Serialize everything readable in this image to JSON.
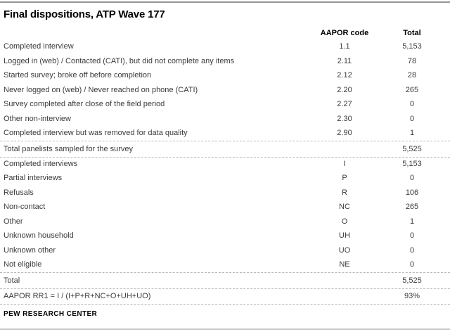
{
  "title": "Final dispositions, ATP Wave 177",
  "columns": {
    "code": "AAPOR code",
    "total": "Total"
  },
  "rows": [
    {
      "label": "Completed interview",
      "code": "1.1",
      "total": "5,153",
      "type": "normal"
    },
    {
      "label": "Logged in (web) / Contacted (CATI), but did not complete any items",
      "code": "2.11",
      "total": "78",
      "type": "normal"
    },
    {
      "label": "Started survey; broke off before completion",
      "code": "2.12",
      "total": "28",
      "type": "normal"
    },
    {
      "label": "Never logged on (web) / Never reached on phone (CATI)",
      "code": "2.20",
      "total": "265",
      "type": "normal"
    },
    {
      "label": "Survey completed after close of the field period",
      "code": "2.27",
      "total": "0",
      "type": "normal"
    },
    {
      "label": "Other non-interview",
      "code": "2.30",
      "total": "0",
      "type": "normal"
    },
    {
      "label": "Completed interview but was removed for data quality",
      "code": "2.90",
      "total": "1",
      "type": "normal"
    },
    {
      "label": "Total panelists sampled for the survey",
      "code": "",
      "total": "5,525",
      "type": "summary"
    },
    {
      "label": "Completed interviews",
      "code": "I",
      "total": "5,153",
      "type": "normal"
    },
    {
      "label": "Partial interviews",
      "code": "P",
      "total": "0",
      "type": "normal"
    },
    {
      "label": "Refusals",
      "code": "R",
      "total": "106",
      "type": "normal"
    },
    {
      "label": "Non-contact",
      "code": "NC",
      "total": "265",
      "type": "normal"
    },
    {
      "label": "Other",
      "code": "O",
      "total": "1",
      "type": "normal"
    },
    {
      "label": "Unknown household",
      "code": "UH",
      "total": "0",
      "type": "normal"
    },
    {
      "label": "Unknown other",
      "code": "UO",
      "total": "0",
      "type": "normal"
    },
    {
      "label": "Not eligible",
      "code": "NE",
      "total": "0",
      "type": "normal"
    },
    {
      "label": "Total",
      "code": "",
      "total": "5,525",
      "type": "summary"
    },
    {
      "label": "AAPOR RR1 = I / (I+P+R+NC+O+UH+UO)",
      "code": "",
      "total": "93%",
      "type": "summary"
    }
  ],
  "footer": "PEW RESEARCH CENTER",
  "colors": {
    "body_text": "#3b3b3b",
    "heading_text": "#000000",
    "dashed_rule": "#b8b8b8",
    "top_rule": "#969696",
    "bottom_rule": "#c9c9c9"
  }
}
